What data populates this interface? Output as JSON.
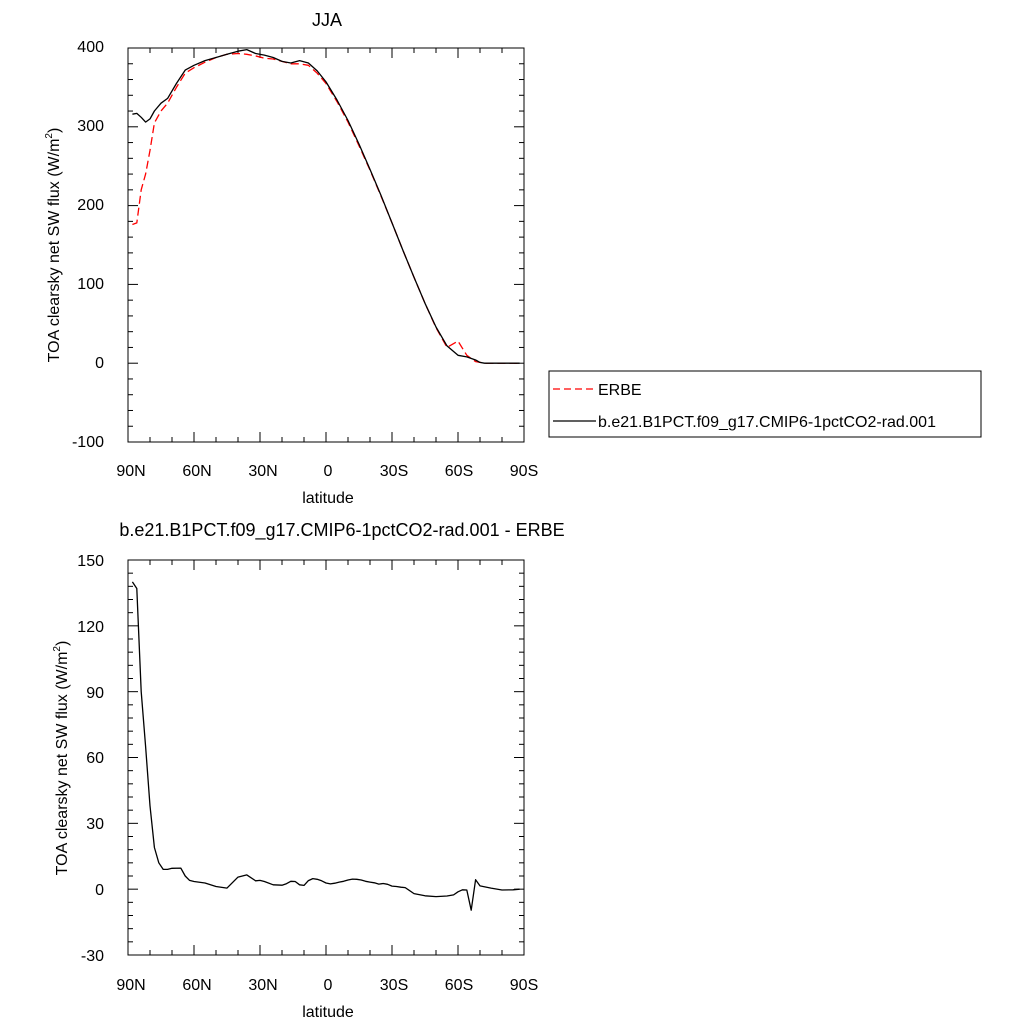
{
  "chart_data": [
    {
      "type": "line",
      "title": "JJA",
      "xlabel": "latitude",
      "ylabel_main": "TOA clearsky net SW flux (W/m",
      "ylabel_sup": "2",
      "ylabel_close": ")",
      "xlim": [
        90,
        -90
      ],
      "ylim": [
        -100,
        400
      ],
      "x_ticks": [
        90,
        60,
        30,
        0,
        -30,
        -60,
        -90
      ],
      "x_tick_labels": [
        "90N",
        "60N",
        "30N",
        "0",
        "30S",
        "60S",
        "90S"
      ],
      "y_ticks": [
        -100,
        0,
        100,
        200,
        300,
        400
      ],
      "y_tick_labels": [
        "-100",
        "0",
        "100",
        "200",
        "300",
        "400"
      ],
      "legend_position": "right",
      "series": [
        {
          "name": "ERBE",
          "color": "#ff0000",
          "style": "dashed",
          "x": [
            88,
            86,
            84,
            82,
            80,
            78,
            75,
            72,
            68,
            64,
            60,
            55,
            50,
            45,
            40,
            36,
            32,
            28,
            24,
            20,
            16,
            12,
            8,
            4,
            0,
            -5,
            -10,
            -15,
            -20,
            -25,
            -30,
            -35,
            -40,
            -45,
            -50,
            -55,
            -60,
            -64,
            -68,
            -70,
            -72,
            -75,
            -80,
            -85,
            -88
          ],
          "y": [
            176,
            178,
            220,
            240,
            270,
            305,
            320,
            330,
            350,
            368,
            375,
            382,
            388,
            392,
            393,
            392,
            390,
            387,
            386,
            383,
            380,
            380,
            378,
            368,
            355,
            332,
            306,
            276,
            245,
            212,
            178,
            143,
            109,
            76,
            45,
            20,
            28,
            10,
            2,
            1,
            0,
            0,
            0,
            0,
            0
          ]
        },
        {
          "name": "b.e21.B1PCT.f09_g17.CMIP6-1pctCO2-rad.001",
          "color": "#000000",
          "style": "solid",
          "x": [
            88,
            86,
            84,
            82,
            80,
            78,
            75,
            72,
            68,
            64,
            60,
            55,
            50,
            45,
            40,
            36,
            32,
            28,
            24,
            20,
            16,
            12,
            8,
            4,
            0,
            -5,
            -10,
            -15,
            -20,
            -25,
            -30,
            -35,
            -40,
            -45,
            -50,
            -55,
            -60,
            -64,
            -68,
            -70,
            -72,
            -75,
            -80,
            -85,
            -88
          ],
          "y": [
            316,
            317,
            312,
            306,
            310,
            320,
            330,
            336,
            355,
            372,
            378,
            384,
            388,
            392,
            396,
            398,
            393,
            391,
            388,
            383,
            381,
            384,
            381,
            371,
            357,
            334,
            308,
            278,
            246,
            213,
            178,
            143,
            109,
            76,
            46,
            22,
            10,
            8,
            4,
            1,
            0,
            0,
            0,
            0,
            0
          ]
        }
      ]
    },
    {
      "type": "line",
      "title": "b.e21.B1PCT.f09_g17.CMIP6-1pctCO2-rad.001 - ERBE",
      "xlabel": "latitude",
      "ylabel_main": "TOA clearsky net SW flux (W/m",
      "ylabel_sup": "2",
      "ylabel_close": ")",
      "xlim": [
        90,
        -90
      ],
      "ylim": [
        -30,
        150
      ],
      "x_ticks": [
        90,
        60,
        30,
        0,
        -30,
        -60,
        -90
      ],
      "x_tick_labels": [
        "90N",
        "60N",
        "30N",
        "0",
        "30S",
        "60S",
        "90S"
      ],
      "y_ticks": [
        -30,
        0,
        30,
        60,
        90,
        120,
        150
      ],
      "y_tick_labels": [
        "-30",
        "0",
        "30",
        "60",
        "90",
        "120",
        "150"
      ],
      "series": [
        {
          "color": "#000000",
          "style": "solid",
          "x": [
            88,
            86,
            84,
            82,
            80,
            78,
            76,
            74,
            72,
            70,
            66,
            64,
            62,
            60,
            55,
            50,
            45,
            40,
            38,
            36,
            32,
            30,
            28,
            24,
            20,
            18,
            16,
            14,
            12,
            10,
            8,
            6,
            4,
            2,
            0,
            -2,
            -4,
            -6,
            -8,
            -10,
            -12,
            -14,
            -16,
            -18,
            -20,
            -22,
            -24,
            -26,
            -28,
            -30,
            -32,
            -34,
            -36,
            -40,
            -45,
            -50,
            -55,
            -58,
            -60,
            -62,
            -64,
            -66,
            -68,
            -70,
            -75,
            -80,
            -85,
            -88
          ],
          "y": [
            140,
            137,
            90,
            65,
            38,
            19,
            12,
            9,
            9,
            9.5,
            9.6,
            6,
            4,
            3.5,
            2.8,
            1.2,
            0.5,
            5.5,
            6,
            6.5,
            3.8,
            4,
            3.5,
            2,
            1.8,
            2.5,
            3.6,
            3.5,
            2,
            1.7,
            3.9,
            4.8,
            4.5,
            3.8,
            2.8,
            2.4,
            2.7,
            3.2,
            3.6,
            4.2,
            4.6,
            4.5,
            4.2,
            3.6,
            3.2,
            2.9,
            2.3,
            2.6,
            2.2,
            1.4,
            1.2,
            0.9,
            0.7,
            -2,
            -3,
            -3.4,
            -3.1,
            -2.6,
            -1.2,
            -0.3,
            -0.4,
            -9.6,
            4.3,
            1.5,
            0.5,
            -0.4,
            -0.3,
            0
          ]
        }
      ]
    }
  ]
}
